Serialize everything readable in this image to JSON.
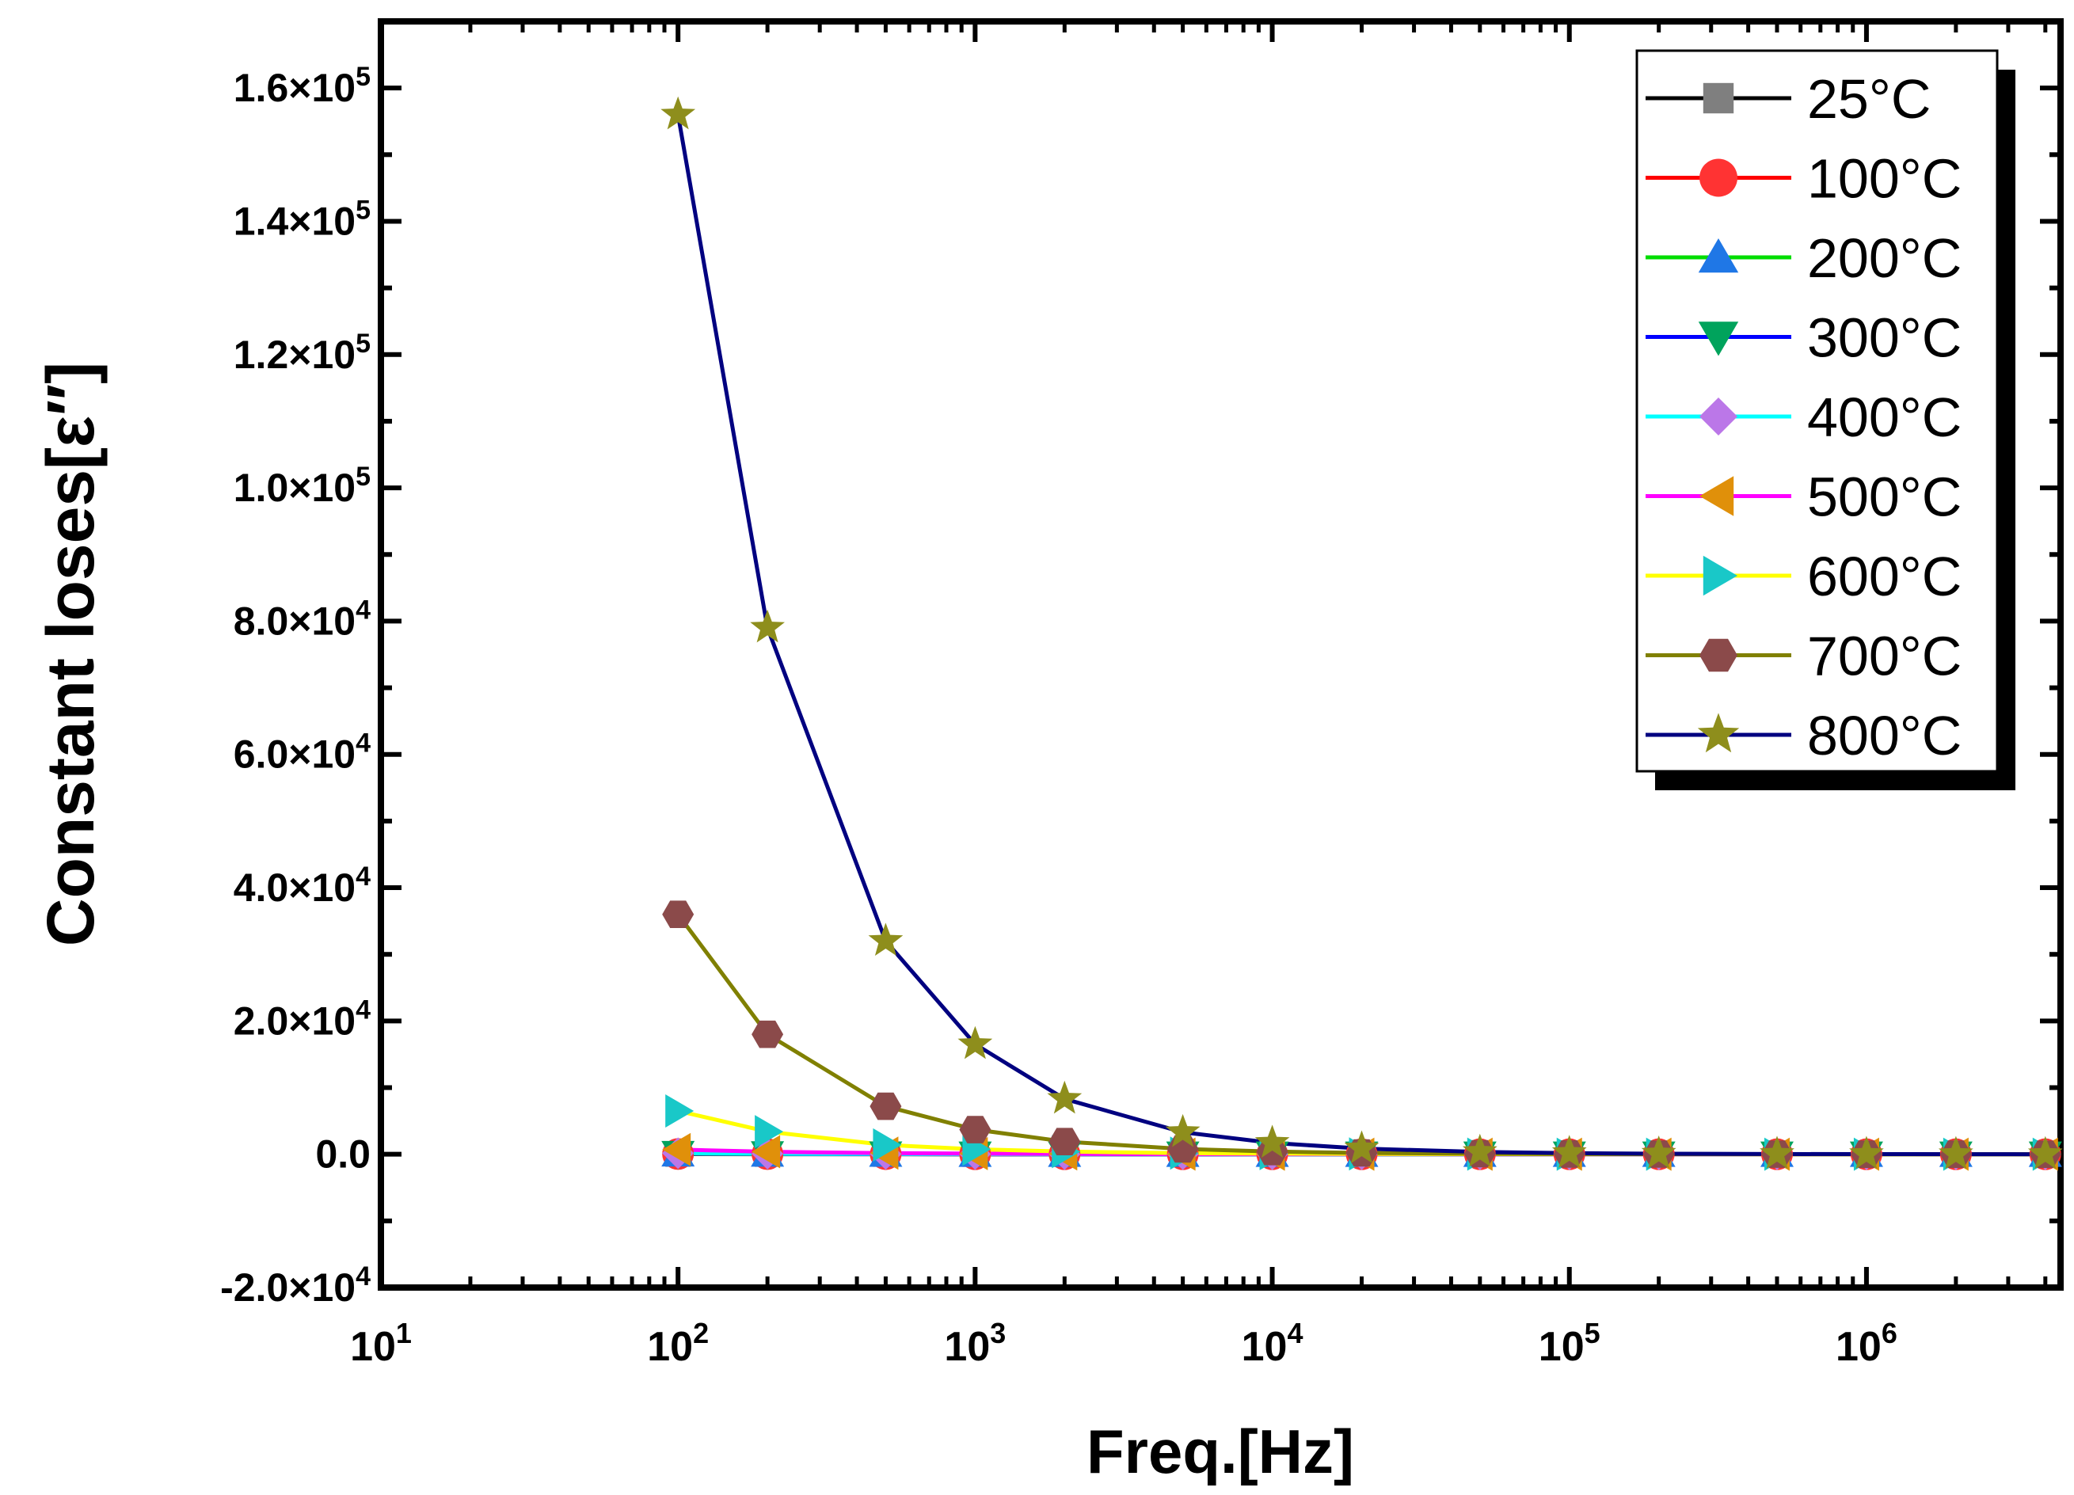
{
  "chart_data": {
    "type": "line",
    "xscale": "log",
    "xlabel": "Freq.[Hz]",
    "ylabel": "Constant loses[ε″]",
    "xlim": [
      10,
      4500000
    ],
    "ylim": [
      -20000,
      170000
    ],
    "x_ticks": [
      {
        "value": 10,
        "base": "10",
        "exp": "1"
      },
      {
        "value": 100,
        "base": "10",
        "exp": "2"
      },
      {
        "value": 1000,
        "base": "10",
        "exp": "3"
      },
      {
        "value": 10000,
        "base": "10",
        "exp": "4"
      },
      {
        "value": 100000,
        "base": "10",
        "exp": "5"
      },
      {
        "value": 1000000,
        "base": "10",
        "exp": "6"
      }
    ],
    "y_ticks": [
      {
        "value": -20000,
        "mant": "-2.0×10",
        "exp": "4"
      },
      {
        "value": 0,
        "mant": "0.0",
        "exp": ""
      },
      {
        "value": 20000,
        "mant": "2.0×10",
        "exp": "4"
      },
      {
        "value": 40000,
        "mant": "4.0×10",
        "exp": "4"
      },
      {
        "value": 60000,
        "mant": "6.0×10",
        "exp": "4"
      },
      {
        "value": 80000,
        "mant": "8.0×10",
        "exp": "4"
      },
      {
        "value": 100000,
        "mant": "1.0×10",
        "exp": "5"
      },
      {
        "value": 120000,
        "mant": "1.2×10",
        "exp": "5"
      },
      {
        "value": 140000,
        "mant": "1.4×10",
        "exp": "5"
      },
      {
        "value": 160000,
        "mant": "1.6×10",
        "exp": "5"
      }
    ],
    "x": [
      100,
      200,
      500,
      1000,
      2000,
      5000,
      10000,
      20000,
      50000,
      100000,
      200000,
      500000,
      1000000,
      2000000,
      4000000
    ],
    "series": [
      {
        "name": "25°C",
        "marker": "square",
        "line_color": "#000000",
        "marker_color": "#7f7f7f",
        "values": [
          20,
          12,
          6,
          4,
          3,
          2,
          1,
          1,
          0,
          0,
          0,
          0,
          0,
          0,
          0
        ]
      },
      {
        "name": "100°C",
        "marker": "circle",
        "line_color": "#ff0000",
        "marker_color": "#ff3333",
        "values": [
          40,
          25,
          12,
          8,
          5,
          3,
          2,
          1,
          1,
          0,
          0,
          0,
          0,
          0,
          0
        ]
      },
      {
        "name": "200°C",
        "marker": "triangle-up",
        "line_color": "#00dd00",
        "marker_color": "#1f77e6",
        "values": [
          60,
          35,
          18,
          10,
          6,
          3,
          2,
          1,
          1,
          0,
          0,
          0,
          0,
          0,
          0
        ]
      },
      {
        "name": "300°C",
        "marker": "triangle-down",
        "line_color": "#0000ff",
        "marker_color": "#00a35c",
        "values": [
          90,
          50,
          25,
          14,
          8,
          4,
          2,
          1,
          1,
          0,
          0,
          0,
          0,
          0,
          0
        ]
      },
      {
        "name": "400°C",
        "marker": "diamond",
        "line_color": "#00ffff",
        "marker_color": "#bb77e8",
        "values": [
          150,
          80,
          40,
          22,
          12,
          6,
          3,
          2,
          1,
          0,
          0,
          0,
          0,
          0,
          0
        ]
      },
      {
        "name": "500°C",
        "marker": "triangle-left",
        "line_color": "#ff00ff",
        "marker_color": "#e0900a",
        "values": [
          700,
          380,
          170,
          90,
          50,
          22,
          12,
          6,
          3,
          1,
          1,
          0,
          0,
          0,
          0
        ]
      },
      {
        "name": "600°C",
        "marker": "triangle-right",
        "line_color": "#ffff00",
        "marker_color": "#19c8c8",
        "values": [
          6500,
          3400,
          1400,
          750,
          400,
          170,
          90,
          45,
          20,
          10,
          5,
          2,
          1,
          1,
          0
        ]
      },
      {
        "name": "700°C",
        "marker": "hexagon",
        "line_color": "#808000",
        "marker_color": "#8b4a4a",
        "values": [
          36000,
          18000,
          7200,
          3700,
          1900,
          800,
          400,
          200,
          80,
          40,
          20,
          8,
          4,
          2,
          1
        ]
      },
      {
        "name": "800°C",
        "marker": "star",
        "line_color": "#000080",
        "marker_color": "#8e8e1c",
        "values": [
          156000,
          79000,
          32000,
          16500,
          8300,
          3300,
          1700,
          850,
          340,
          170,
          85,
          34,
          17,
          8,
          4
        ]
      }
    ],
    "legend_position": "top-right",
    "grid": false
  }
}
